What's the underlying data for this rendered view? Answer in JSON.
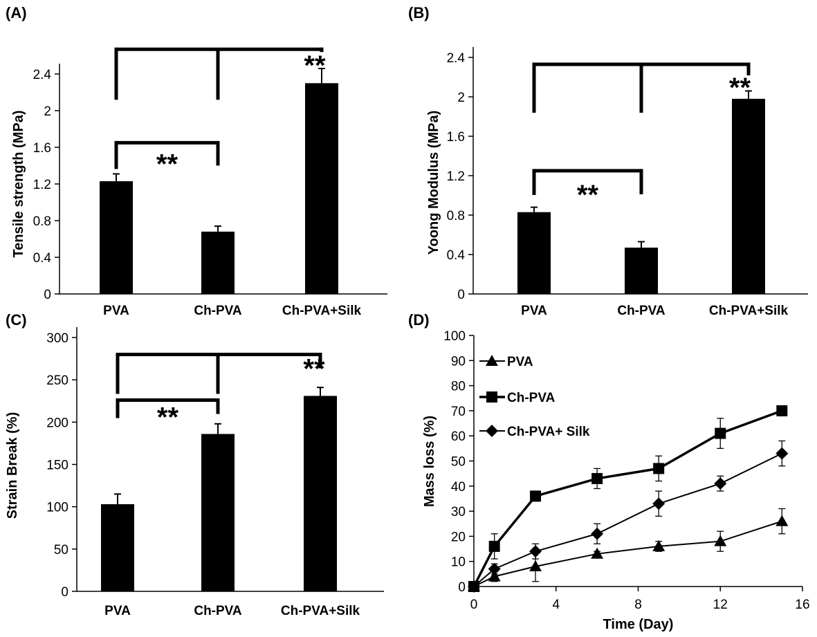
{
  "chart_data": [
    {
      "panel": "(A)",
      "type": "bar",
      "ylabel": "Tensile strength (MPa)",
      "xlabel": "",
      "ylim": [
        0,
        2.4
      ],
      "yticks": [
        "0",
        "0.4",
        "0.8",
        "1.2",
        "1.6",
        "2",
        "2.4"
      ],
      "categories": [
        "PVA",
        "Ch-PVA",
        "Ch-PVA+Silk"
      ],
      "values": [
        1.23,
        0.68,
        2.3
      ],
      "errors": [
        0.08,
        0.06,
        0.16
      ],
      "significance": [
        {
          "from": 0,
          "to": 1,
          "label": "**",
          "level": 1.65
        },
        {
          "from": 0,
          "to": 2,
          "label": "**",
          "level": 2.67,
          "mid_drop_to": 1
        }
      ]
    },
    {
      "panel": "(B)",
      "type": "bar",
      "ylabel": "Yoong Modulus  (MPa)",
      "xlabel": "",
      "ylim": [
        0,
        2.4
      ],
      "yticks": [
        "0",
        "0.4",
        "0.8",
        "1.2",
        "1.6",
        "2",
        "2.4"
      ],
      "categories": [
        "PVA",
        "Ch-PVA",
        "Ch-PVA+Silk"
      ],
      "values": [
        0.83,
        0.47,
        1.98
      ],
      "errors": [
        0.05,
        0.06,
        0.08
      ],
      "significance": [
        {
          "from": 0,
          "to": 1,
          "label": "**",
          "level": 1.25
        },
        {
          "from": 0,
          "to": 2,
          "label": "**",
          "level": 2.33,
          "mid_drop_to": 1
        }
      ]
    },
    {
      "panel": "(C)",
      "type": "bar",
      "ylabel": "Strain Break (%)",
      "xlabel": "",
      "ylim": [
        0,
        300
      ],
      "yticks": [
        "0",
        "50",
        "100",
        "150",
        "200",
        "250",
        "300"
      ],
      "categories": [
        "PVA",
        "Ch-PVA",
        "Ch-PVA+Silk"
      ],
      "values": [
        103,
        186,
        231
      ],
      "errors": [
        12,
        12,
        10
      ],
      "significance": [
        {
          "from": 0,
          "to": 1,
          "label": "**",
          "level": 226
        },
        {
          "from": 0,
          "to": 2,
          "label": "**",
          "level": 280,
          "mid_drop_to": 1
        }
      ]
    },
    {
      "panel": "(D)",
      "type": "line",
      "xlabel": "Time (Day)",
      "ylabel": "Mass loss (%)",
      "xlim": [
        0,
        16
      ],
      "ylim": [
        0,
        100
      ],
      "xticks": [
        "0",
        "4",
        "8",
        "12",
        "16"
      ],
      "yticks": [
        "0",
        "10",
        "20",
        "30",
        "40",
        "50",
        "60",
        "70",
        "80",
        "90",
        "100"
      ],
      "x": [
        0,
        1,
        3,
        6,
        9,
        12,
        15
      ],
      "series": [
        {
          "name": "PVA",
          "marker": "triangle",
          "values": [
            0,
            4,
            8,
            13,
            16,
            18,
            26
          ],
          "errors": [
            0,
            2,
            6,
            1,
            2,
            4,
            5
          ]
        },
        {
          "name": "Ch-PVA",
          "marker": "square",
          "values": [
            0,
            16,
            36,
            43,
            47,
            61,
            70
          ],
          "errors": [
            0,
            5,
            2,
            4,
            5,
            6,
            2
          ]
        },
        {
          "name": "Ch-PVA+ Silk",
          "marker": "diamond",
          "values": [
            0,
            7,
            14,
            21,
            33,
            41,
            53
          ],
          "errors": [
            0,
            2,
            3,
            4,
            5,
            3,
            5
          ]
        }
      ]
    }
  ]
}
